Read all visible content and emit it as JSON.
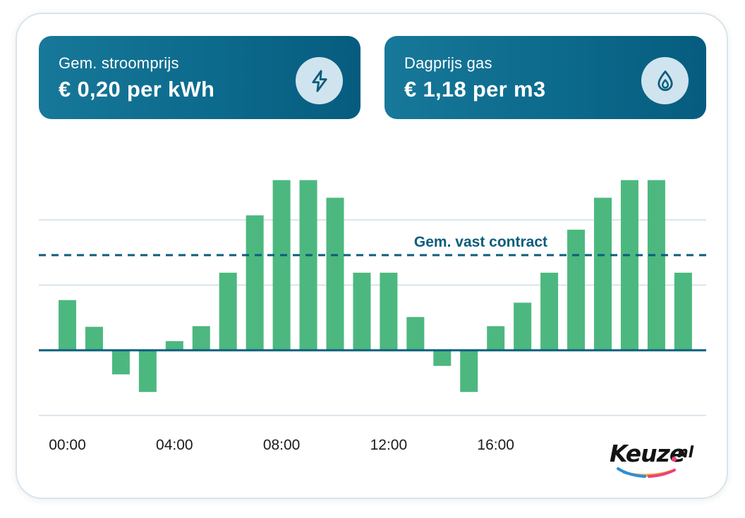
{
  "cards": {
    "electricity": {
      "label": "Gem. stroomprijs",
      "value": "€ 0,20 per kWh",
      "icon": "lightning-bolt-icon"
    },
    "gas": {
      "label": "Dagprijs gas",
      "value": "€ 1,18 per m3",
      "icon": "flame-drop-icon"
    }
  },
  "chart_data": {
    "type": "bar",
    "title": "",
    "xlabel": "",
    "ylabel": "",
    "categories": [
      "00:00",
      "01:00",
      "02:00",
      "03:00",
      "04:00",
      "05:00",
      "06:00",
      "07:00",
      "08:00",
      "09:00",
      "10:00",
      "11:00",
      "12:00",
      "13:00",
      "14:00",
      "15:00",
      "16:00",
      "17:00",
      "18:00",
      "19:00",
      "20:00",
      "21:00",
      "22:00",
      "23:00"
    ],
    "values": [
      0.77,
      0.36,
      -0.37,
      -0.64,
      0.14,
      0.37,
      1.19,
      2.07,
      2.61,
      2.61,
      2.34,
      1.19,
      1.19,
      0.51,
      -0.24,
      -0.64,
      0.37,
      0.73,
      1.19,
      1.85,
      2.34,
      2.61,
      2.61,
      1.19
    ],
    "x_tick_labels": [
      "00:00",
      "04:00",
      "08:00",
      "12:00",
      "16:00"
    ],
    "ylim": [
      -1.0,
      3.0
    ],
    "gridlines": [
      -1,
      1,
      2
    ],
    "reference_line": {
      "label": "Gem. vast contract",
      "value": 1.46,
      "style": "dashed"
    },
    "grid": true,
    "legend": "none",
    "colors": {
      "bars": "#4cb87f",
      "baseline": "#0b5d7c",
      "reference": "#0b5d7c",
      "grid": "#cfdde6"
    }
  },
  "brand": {
    "name": "Keuze",
    "tld": "nl"
  }
}
